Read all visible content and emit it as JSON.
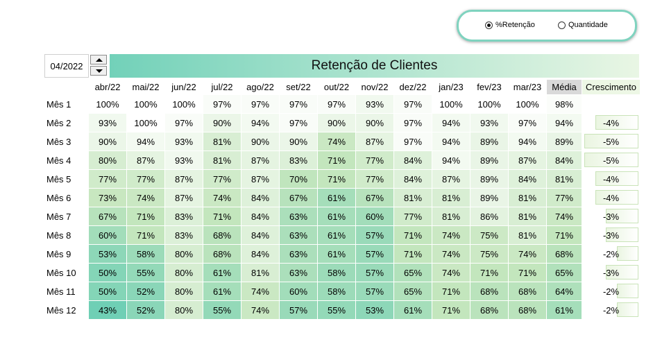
{
  "view_toggle": {
    "options": [
      {
        "label": "%Retenção",
        "checked": true
      },
      {
        "label": "Quantidade",
        "checked": false
      }
    ]
  },
  "date_selector": {
    "value": "04/2022"
  },
  "title": "Retenção de Clientes",
  "columns": [
    "abr/22",
    "mai/22",
    "jun/22",
    "jul/22",
    "ago/22",
    "set/22",
    "out/22",
    "nov/22",
    "dez/22",
    "jan/23",
    "fev/23",
    "mar/23"
  ],
  "media_label": "Média",
  "crescimento_label": "Crescimento",
  "rows": [
    {
      "label": "Mês 1",
      "values": [
        "100%",
        "100%",
        "100%",
        "97%",
        "97%",
        "97%",
        "97%",
        "93%",
        "97%",
        "100%",
        "100%",
        "100%"
      ],
      "media": "98%",
      "crescimento": ""
    },
    {
      "label": "Mês 2",
      "values": [
        "93%",
        "100%",
        "97%",
        "90%",
        "94%",
        "97%",
        "90%",
        "90%",
        "97%",
        "94%",
        "93%",
        "97%"
      ],
      "media": "94%",
      "crescimento": "-4%"
    },
    {
      "label": "Mês 3",
      "values": [
        "90%",
        "94%",
        "93%",
        "81%",
        "90%",
        "90%",
        "74%",
        "87%",
        "97%",
        "94%",
        "89%",
        "94%"
      ],
      "media": "89%",
      "crescimento": "-5%"
    },
    {
      "label": "Mês 4",
      "values": [
        "80%",
        "87%",
        "93%",
        "81%",
        "87%",
        "83%",
        "71%",
        "77%",
        "84%",
        "94%",
        "89%",
        "87%"
      ],
      "media": "84%",
      "crescimento": "-5%"
    },
    {
      "label": "Mês 5",
      "values": [
        "77%",
        "77%",
        "87%",
        "77%",
        "87%",
        "70%",
        "71%",
        "77%",
        "84%",
        "87%",
        "89%",
        "84%"
      ],
      "media": "81%",
      "crescimento": "-4%"
    },
    {
      "label": "Mês 6",
      "values": [
        "73%",
        "74%",
        "87%",
        "74%",
        "84%",
        "67%",
        "61%",
        "67%",
        "81%",
        "81%",
        "89%",
        "81%"
      ],
      "media": "77%",
      "crescimento": "-4%"
    },
    {
      "label": "Mês 7",
      "values": [
        "67%",
        "71%",
        "83%",
        "71%",
        "84%",
        "63%",
        "61%",
        "60%",
        "77%",
        "81%",
        "86%",
        "81%"
      ],
      "media": "74%",
      "crescimento": "-3%"
    },
    {
      "label": "Mês 8",
      "values": [
        "60%",
        "71%",
        "83%",
        "68%",
        "84%",
        "63%",
        "61%",
        "57%",
        "71%",
        "74%",
        "75%",
        "81%"
      ],
      "media": "71%",
      "crescimento": "-3%"
    },
    {
      "label": "Mês 9",
      "values": [
        "53%",
        "58%",
        "80%",
        "68%",
        "84%",
        "63%",
        "61%",
        "57%",
        "71%",
        "74%",
        "75%",
        "74%"
      ],
      "media": "68%",
      "crescimento": "-2%"
    },
    {
      "label": "Mês 10",
      "values": [
        "50%",
        "55%",
        "80%",
        "61%",
        "81%",
        "63%",
        "58%",
        "57%",
        "65%",
        "74%",
        "71%",
        "71%"
      ],
      "media": "65%",
      "crescimento": "-3%"
    },
    {
      "label": "Mês 11",
      "values": [
        "50%",
        "52%",
        "80%",
        "61%",
        "74%",
        "60%",
        "58%",
        "57%",
        "65%",
        "71%",
        "68%",
        "68%"
      ],
      "media": "64%",
      "crescimento": "-2%"
    },
    {
      "label": "Mês 12",
      "values": [
        "43%",
        "52%",
        "80%",
        "55%",
        "74%",
        "57%",
        "55%",
        "53%",
        "61%",
        "71%",
        "68%",
        "68%"
      ],
      "media": "61%",
      "crescimento": "-2%"
    }
  ],
  "colors": {
    "scale_low": "#6fcfb5",
    "scale_mid": "#c5e6bd",
    "scale_high": "#ffffff",
    "border_accent": "#7fd3bf"
  }
}
